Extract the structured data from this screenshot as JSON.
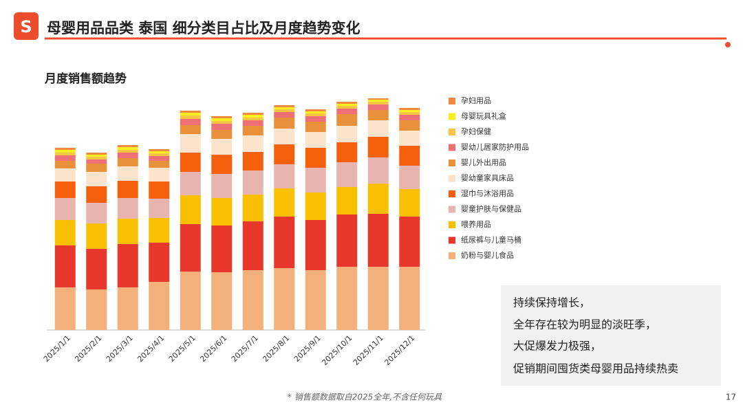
{
  "logo": "S",
  "header": {
    "title": "母婴用品品类 泰国 细分类目占比及月度趋势变化"
  },
  "chart_data": {
    "type": "bar",
    "stacked": true,
    "title": "月度销售额趋势",
    "categories": [
      "2025/1/1",
      "2025/2/1",
      "2025/3/1",
      "2025/4/1",
      "2025/5/1",
      "2025/6/1",
      "2025/7/1",
      "2025/8/1",
      "2025/9/1",
      "2025/10/1",
      "2025/11/1",
      "2025/12/1"
    ],
    "series": [
      {
        "name": "奶粉与婴儿食品",
        "color": "#f4b07a",
        "values": [
          62,
          59,
          62,
          70,
          85,
          84,
          87,
          90,
          87,
          92,
          92,
          92
        ]
      },
      {
        "name": "纸尿裤与儿童马桶",
        "color": "#e8382c",
        "values": [
          61,
          59,
          63,
          57,
          69,
          68,
          71,
          75,
          73,
          76,
          77,
          73
        ]
      },
      {
        "name": "喂养用品",
        "color": "#f8c000",
        "values": [
          37,
          37,
          37,
          36,
          42,
          40,
          39,
          41,
          40,
          40,
          44,
          40
        ]
      },
      {
        "name": "婴童护肤与保健品",
        "color": "#e8b4b0",
        "values": [
          32,
          30,
          30,
          28,
          34,
          35,
          35,
          35,
          36,
          36,
          38,
          34
        ]
      },
      {
        "name": "湿巾与沐浴用品",
        "color": "#f4600c",
        "values": [
          24,
          24,
          25,
          25,
          28,
          28,
          27,
          29,
          29,
          29,
          30,
          29
        ]
      },
      {
        "name": "婴幼童家具床品",
        "color": "#fbe3cc",
        "values": [
          19,
          21,
          21,
          20,
          27,
          23,
          24,
          23,
          23,
          24,
          24,
          22
        ]
      },
      {
        "name": "婴儿外出用品",
        "color": "#e8903a",
        "values": [
          11,
          12,
          12,
          10,
          13,
          13,
          14,
          16,
          15,
          17,
          15,
          15
        ]
      },
      {
        "name": "婴幼儿居家防护用品",
        "color": "#ee7077",
        "values": [
          8,
          6,
          8,
          7,
          9,
          9,
          8,
          8,
          8,
          8,
          8,
          8
        ]
      },
      {
        "name": "孕妇保健",
        "color": "#f7c444",
        "values": [
          4,
          4,
          4,
          4,
          5,
          4,
          4,
          4,
          4,
          4,
          4,
          4
        ]
      },
      {
        "name": "母婴玩具礼盒",
        "color": "#f9ef20",
        "values": [
          4,
          3,
          4,
          3,
          4,
          4,
          4,
          3,
          3,
          3,
          3,
          3
        ]
      },
      {
        "name": "孕妇用品",
        "color": "#f08a40",
        "values": [
          3,
          3,
          3,
          3,
          3,
          3,
          3,
          3,
          3,
          3,
          2,
          3
        ]
      }
    ]
  },
  "notes": [
    "持续保持增长，",
    "全年存在较为明显的淡旺季，",
    "大促爆发力极强，",
    "促销期间囤货类母婴用品持续热卖"
  ],
  "footnote": "* 销售额数据取自2025全年,不含任何玩具",
  "page_number": "17"
}
